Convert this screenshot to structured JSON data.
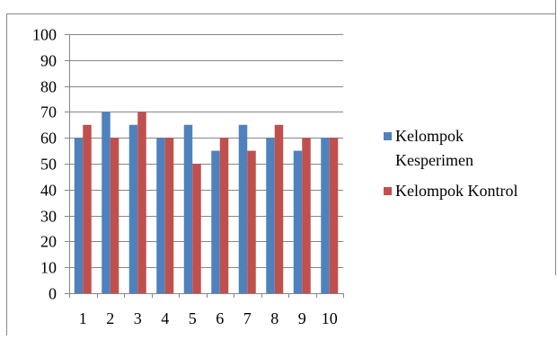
{
  "chart_data": {
    "type": "bar",
    "categories": [
      "1",
      "2",
      "3",
      "4",
      "5",
      "6",
      "7",
      "8",
      "9",
      "10"
    ],
    "series": [
      {
        "name": "Kelompok Kesperimen",
        "values": [
          60,
          70,
          65,
          60,
          65,
          55,
          65,
          60,
          55,
          60
        ]
      },
      {
        "name": "Kelompok Kontrol",
        "values": [
          65,
          60,
          70,
          60,
          50,
          60,
          55,
          65,
          60,
          60
        ]
      }
    ],
    "ylim": [
      0,
      100
    ],
    "yticks": [
      "0",
      "10",
      "20",
      "30",
      "40",
      "50",
      "60",
      "70",
      "80",
      "90",
      "100"
    ],
    "grid": true,
    "legend_position": "right",
    "colors": {
      "series": [
        "#4f81bd",
        "#c0504d"
      ],
      "grid": "#868686"
    }
  }
}
